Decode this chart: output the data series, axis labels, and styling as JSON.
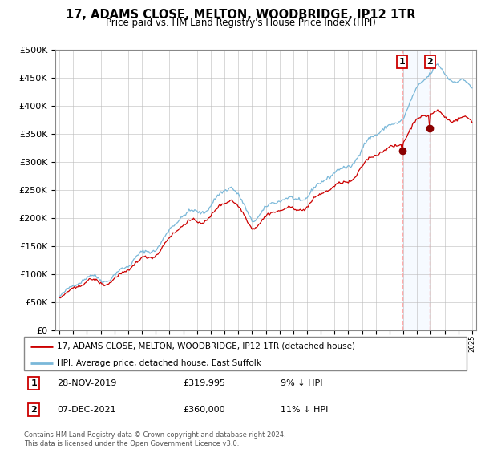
{
  "title": "17, ADAMS CLOSE, MELTON, WOODBRIDGE, IP12 1TR",
  "subtitle": "Price paid vs. HM Land Registry's House Price Index (HPI)",
  "legend_line1": "17, ADAMS CLOSE, MELTON, WOODBRIDGE, IP12 1TR (detached house)",
  "legend_line2": "HPI: Average price, detached house, East Suffolk",
  "annotation1_date": "28-NOV-2019",
  "annotation1_price": "£319,995",
  "annotation1_hpi": "9% ↓ HPI",
  "annotation2_date": "07-DEC-2021",
  "annotation2_price": "£360,000",
  "annotation2_hpi": "11% ↓ HPI",
  "footer": "Contains HM Land Registry data © Crown copyright and database right 2024.\nThis data is licensed under the Open Government Licence v3.0.",
  "hpi_color": "#7ab8d9",
  "price_color": "#cc0000",
  "marker_color": "#8b0000",
  "span_color": "#ddeeff",
  "vline_color": "#ffaaaa",
  "ylim": [
    0,
    500000
  ],
  "yticks": [
    0,
    50000,
    100000,
    150000,
    200000,
    250000,
    300000,
    350000,
    400000,
    450000,
    500000
  ],
  "year_start": 1995,
  "year_end": 2025,
  "sale1_year": 2019.91,
  "sale1_price": 319995,
  "sale2_year": 2021.93,
  "sale2_price": 360000
}
